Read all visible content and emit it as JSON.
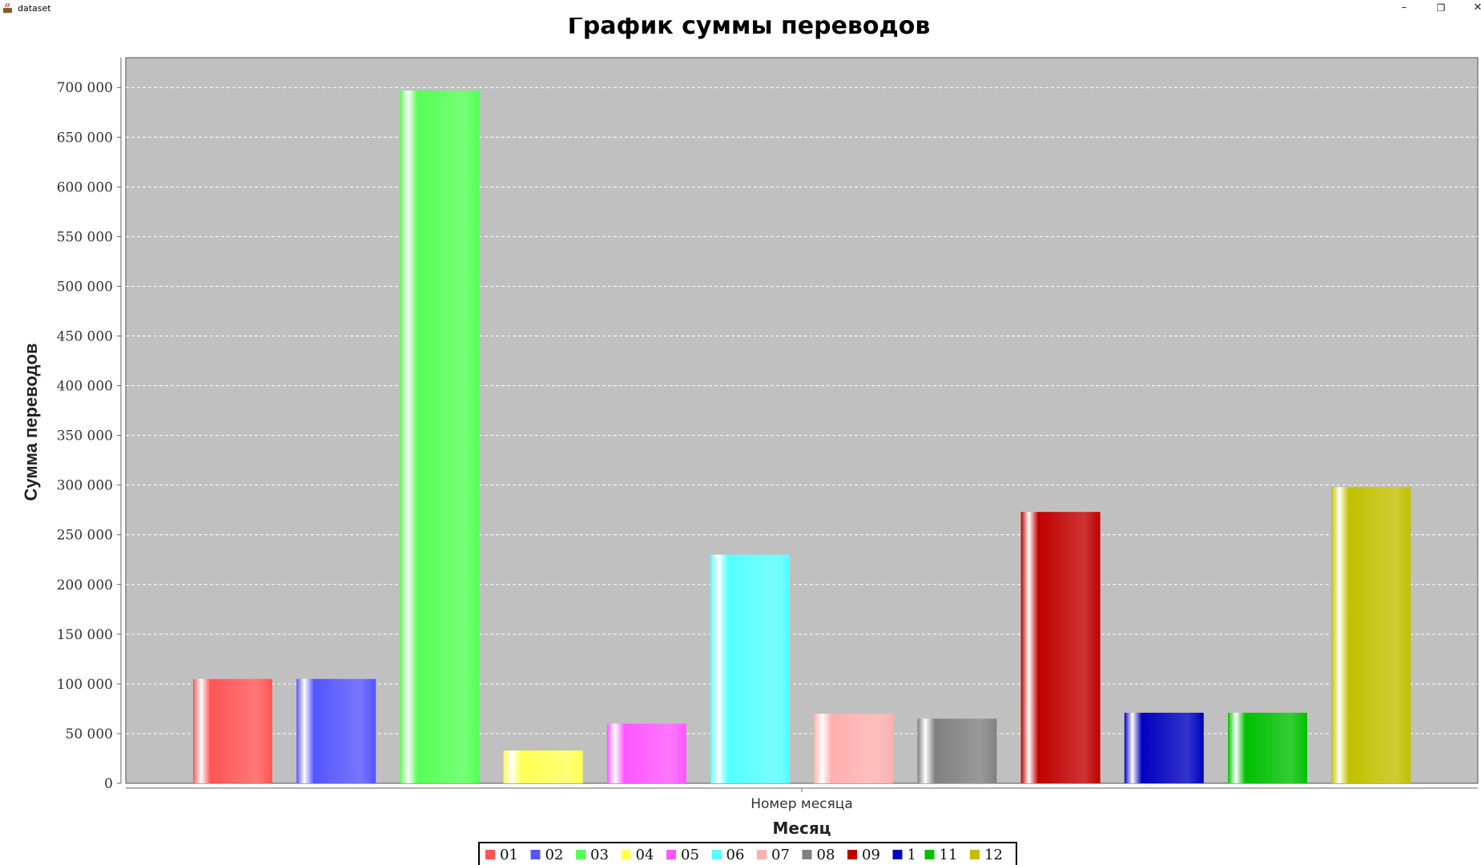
{
  "window": {
    "title": "dataset",
    "controls": {
      "minimize": "–",
      "restore": "❐",
      "close": "✕"
    }
  },
  "chart_data": {
    "type": "bar",
    "title": "График суммы переводов",
    "xlabel": "Месяц",
    "category_label": "Номер месяца",
    "ylabel": "Сумма переводов",
    "ylim": [
      0,
      730000
    ],
    "yticks": [
      0,
      50000,
      100000,
      150000,
      200000,
      250000,
      300000,
      350000,
      400000,
      450000,
      500000,
      550000,
      600000,
      650000,
      700000
    ],
    "ytick_labels": [
      "0",
      "50 000",
      "100 000",
      "150 000",
      "200 000",
      "250 000",
      "300 000",
      "350 000",
      "400 000",
      "450 000",
      "500 000",
      "550 000",
      "600 000",
      "650 000",
      "700 000"
    ],
    "grid": true,
    "legend_position": "bottom",
    "plot_background": "#c0c0c0",
    "series": [
      {
        "name": "01",
        "value": 105000,
        "color": "#ff5555"
      },
      {
        "name": "02",
        "value": 105000,
        "color": "#5555ff"
      },
      {
        "name": "03",
        "value": 697000,
        "color": "#55ff55"
      },
      {
        "name": "04",
        "value": 33000,
        "color": "#ffff55"
      },
      {
        "name": "05",
        "value": 60000,
        "color": "#ff55ff"
      },
      {
        "name": "06",
        "value": 230000,
        "color": "#55ffff"
      },
      {
        "name": "07",
        "value": 70000,
        "color": "#ffafaf"
      },
      {
        "name": "08",
        "value": 65000,
        "color": "#808080"
      },
      {
        "name": "09",
        "value": 273000,
        "color": "#c00000"
      },
      {
        "name": "1",
        "value": 71000,
        "color": "#0000c0"
      },
      {
        "name": "11",
        "value": 71000,
        "color": "#00c000"
      },
      {
        "name": "12",
        "value": 298000,
        "color": "#c0c000"
      }
    ]
  }
}
